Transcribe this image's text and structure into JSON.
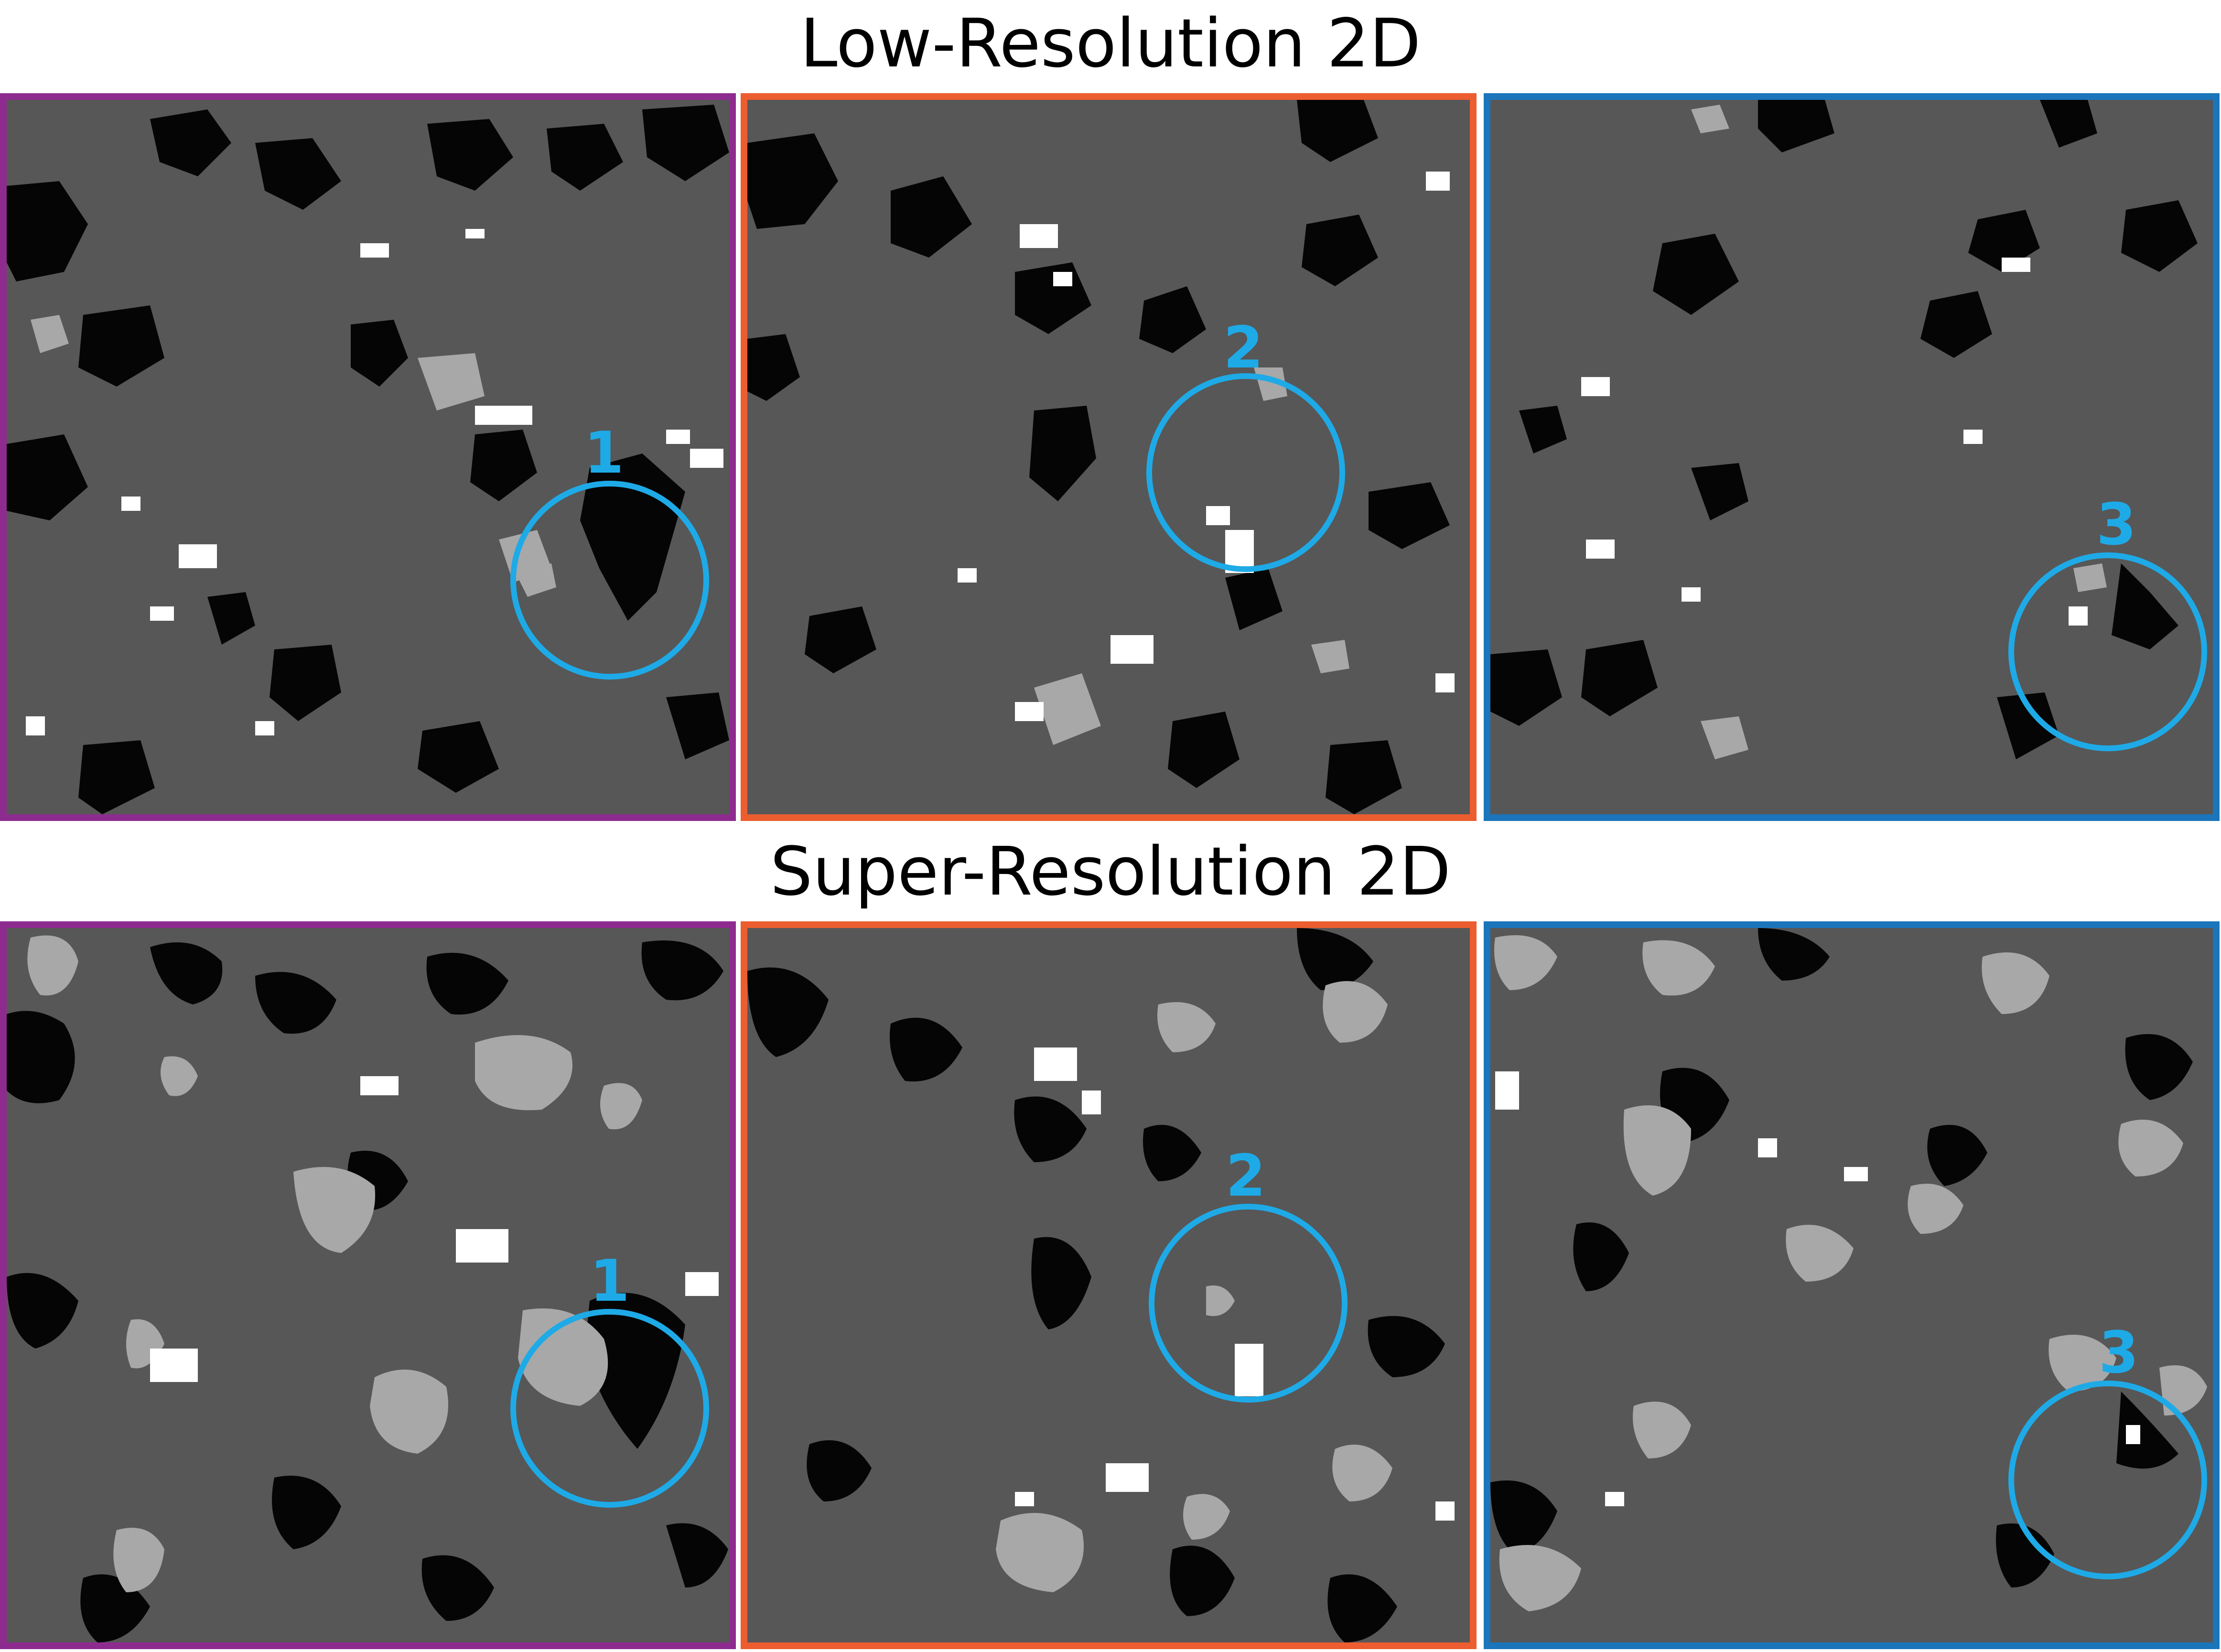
{
  "titles": {
    "low_resolution": "Low-Resolution 2D",
    "super_resolution": "Super-Resolution 2D"
  },
  "colors": {
    "background": "#ffffff",
    "matrix_gray": "#575757",
    "pore_black": "#050505",
    "mineral_light_gray": "#a8a8a8",
    "phase_white": "#ffffff",
    "highlight_blue": "#1eaae7",
    "frame_left": "#8e2b8f",
    "frame_middle": "#ec5d2f",
    "frame_right": "#1b75bb"
  },
  "markers": [
    "1",
    "2",
    "3"
  ],
  "panels": [
    {
      "row": "low",
      "col": 1,
      "frame": "purple",
      "marker": "1"
    },
    {
      "row": "low",
      "col": 2,
      "frame": "orange",
      "marker": "2"
    },
    {
      "row": "low",
      "col": 3,
      "frame": "blue",
      "marker": "3"
    },
    {
      "row": "super",
      "col": 1,
      "frame": "purple",
      "marker": "1"
    },
    {
      "row": "super",
      "col": 2,
      "frame": "orange",
      "marker": "2"
    },
    {
      "row": "super",
      "col": 3,
      "frame": "blue",
      "marker": "3"
    }
  ]
}
